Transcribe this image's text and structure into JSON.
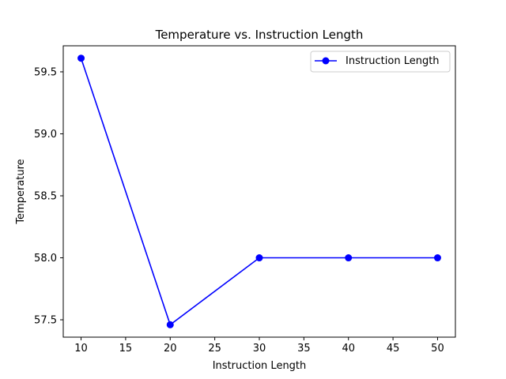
{
  "chart_data": {
    "type": "line",
    "title": "Temperature vs. Instruction Length",
    "xlabel": "Instruction Length",
    "ylabel": "Temperature",
    "x": [
      10,
      20,
      30,
      40,
      50
    ],
    "series": [
      {
        "name": "Instruction Length",
        "values": [
          59.61,
          57.46,
          58.0,
          58.0,
          58.0
        ],
        "color": "#0000ff",
        "marker": "circle"
      }
    ],
    "xlim": [
      8,
      52
    ],
    "ylim": [
      57.36,
      59.71
    ],
    "xticks": [
      "10",
      "15",
      "20",
      "25",
      "30",
      "35",
      "40",
      "45",
      "50"
    ],
    "yticks": [
      "57.5",
      "58.0",
      "58.5",
      "59.0",
      "59.5"
    ],
    "grid": false,
    "legend": "top-right"
  }
}
